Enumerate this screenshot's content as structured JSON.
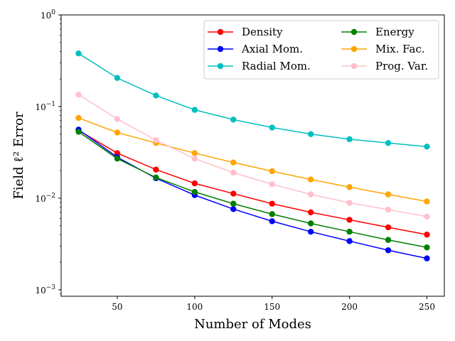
{
  "chart_data": {
    "type": "line",
    "title": "",
    "xlabel": "Number of Modes",
    "ylabel": "Field ℓ² Error",
    "yscale": "log",
    "xlim": [
      13.75,
      261.25
    ],
    "ylim": [
      0.00085,
      1.0
    ],
    "xticks": [
      50,
      100,
      150,
      200,
      250
    ],
    "yticks": [
      {
        "value": 0.001,
        "base": "10",
        "exp": "−3"
      },
      {
        "value": 0.01,
        "base": "10",
        "exp": "−2"
      },
      {
        "value": 0.1,
        "base": "10",
        "exp": "−1"
      },
      {
        "value": 1,
        "base": "10",
        "exp": "0"
      }
    ],
    "grid": false,
    "legend_position": "top-right",
    "legend_columns": 2,
    "x": [
      25,
      50,
      75,
      100,
      125,
      150,
      175,
      200,
      225,
      250
    ],
    "series": [
      {
        "name": "Density",
        "color": "#ff0000",
        "values": [
          0.055,
          0.031,
          0.0205,
          0.0145,
          0.0112,
          0.0087,
          0.007,
          0.0058,
          0.0048,
          0.004
        ]
      },
      {
        "name": "Axial Mom.",
        "color": "#0000ff",
        "values": [
          0.056,
          0.028,
          0.0165,
          0.0108,
          0.0076,
          0.0056,
          0.0043,
          0.0034,
          0.0027,
          0.0022
        ]
      },
      {
        "name": "Radial Mom.",
        "color": "#00bfbf",
        "values": [
          0.38,
          0.205,
          0.132,
          0.092,
          0.072,
          0.059,
          0.05,
          0.044,
          0.04,
          0.0365
        ]
      },
      {
        "name": "Energy",
        "color": "#008000",
        "values": [
          0.053,
          0.027,
          0.0168,
          0.0117,
          0.0087,
          0.0067,
          0.0053,
          0.0043,
          0.0035,
          0.0029
        ]
      },
      {
        "name": "Mix. Fac.",
        "color": "#ffa500",
        "values": [
          0.075,
          0.052,
          0.04,
          0.031,
          0.0245,
          0.0197,
          0.016,
          0.0132,
          0.011,
          0.0092
        ]
      },
      {
        "name": "Prog. Var.",
        "color": "#ffc0cb",
        "values": [
          0.135,
          0.073,
          0.043,
          0.027,
          0.019,
          0.0142,
          0.011,
          0.0089,
          0.0075,
          0.0063
        ]
      }
    ]
  }
}
